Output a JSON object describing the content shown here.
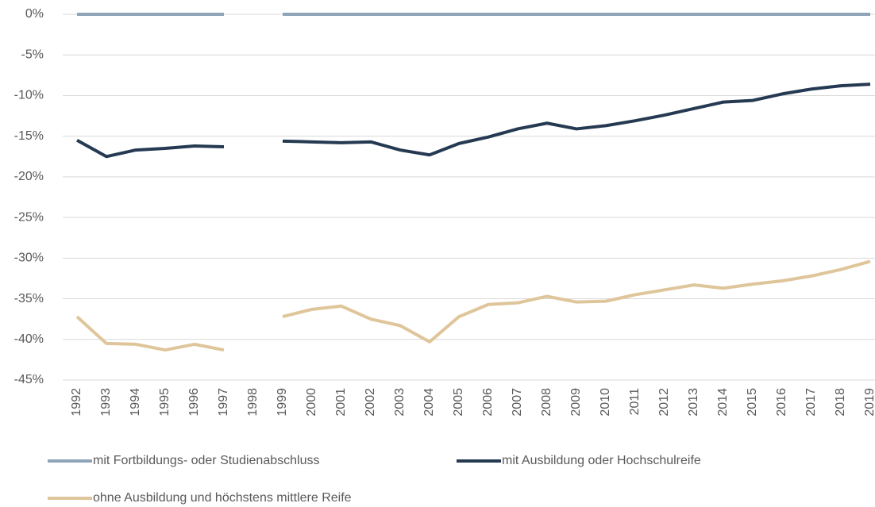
{
  "chart_data": {
    "type": "line",
    "categories": [
      "1992",
      "1993",
      "1994",
      "1995",
      "1996",
      "1997",
      "1998",
      "1999",
      "2000",
      "2001",
      "2002",
      "2003",
      "2004",
      "2005",
      "2006",
      "2007",
      "2008",
      "2009",
      "2010",
      "2011",
      "2012",
      "2013",
      "2014",
      "2015",
      "2016",
      "2017",
      "2018",
      "2019"
    ],
    "series": [
      {
        "name": "mit Fortbildungs- oder Studienabschluss",
        "color": "#8fa4b8",
        "values": [
          0,
          0,
          0,
          0,
          0,
          0,
          null,
          0,
          0,
          0,
          0,
          0,
          0,
          0,
          0,
          0,
          0,
          0,
          0,
          0,
          0,
          0,
          0,
          0,
          0,
          0,
          0,
          0
        ]
      },
      {
        "name": "mit Ausbildung oder Hochschulreife",
        "color": "#253a52",
        "values": [
          -15.5,
          -17.5,
          -16.7,
          -16.5,
          -16.2,
          -16.3,
          null,
          -15.6,
          -15.7,
          -15.8,
          -15.7,
          -16.7,
          -17.3,
          -15.9,
          -15.1,
          -14.1,
          -13.4,
          -14.1,
          -13.7,
          -13.1,
          -12.4,
          -11.6,
          -10.8,
          -10.6,
          -9.8,
          -9.2,
          -8.8,
          -8.6
        ]
      },
      {
        "name": "ohne Ausbildung und höchstens mittlere Reife",
        "color": "#dfc59a",
        "values": [
          -37.2,
          -40.5,
          -40.6,
          -41.3,
          -40.6,
          -41.3,
          null,
          -37.2,
          -36.3,
          -35.9,
          -37.5,
          -38.3,
          -40.3,
          -37.2,
          -35.7,
          -35.5,
          -34.7,
          -35.4,
          -35.3,
          -34.5,
          -33.9,
          -33.3,
          -33.7,
          -33.2,
          -32.8,
          -32.2,
          -31.4,
          -30.4
        ]
      }
    ],
    "ylim": [
      -45,
      0
    ],
    "yticks": [
      {
        "value": 0,
        "label": "0%"
      },
      {
        "value": -5,
        "label": "-5%"
      },
      {
        "value": -10,
        "label": "-10%"
      },
      {
        "value": -15,
        "label": "-15%"
      },
      {
        "value": -20,
        "label": "-20%"
      },
      {
        "value": -25,
        "label": "-25%"
      },
      {
        "value": -30,
        "label": "-30%"
      },
      {
        "value": -35,
        "label": "-35%"
      },
      {
        "value": -40,
        "label": "-40%"
      },
      {
        "value": -45,
        "label": "-45%"
      }
    ],
    "grid": true
  }
}
